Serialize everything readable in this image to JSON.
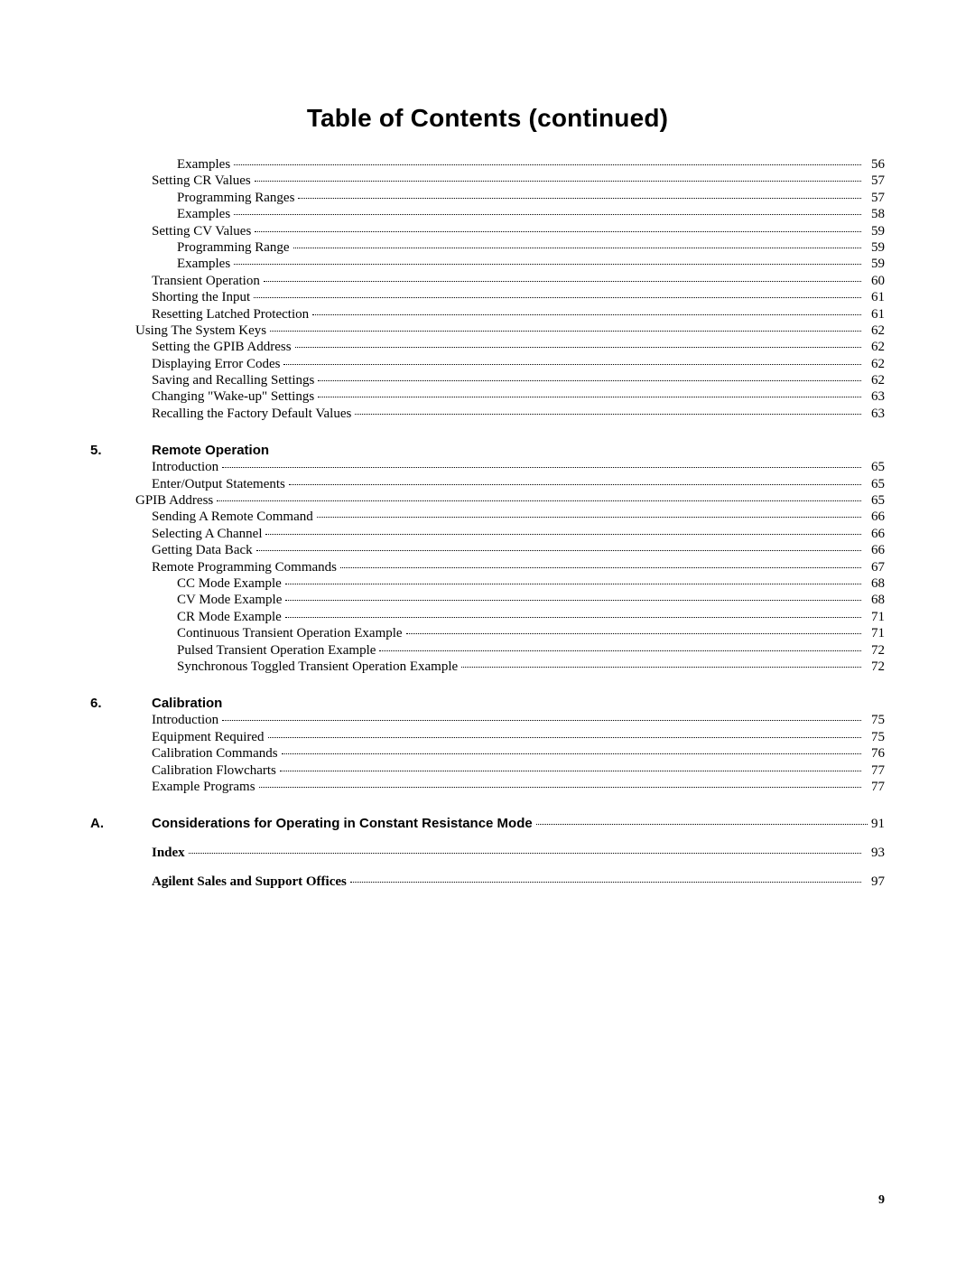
{
  "title": "Table of Contents (continued)",
  "page_number": "9",
  "continued_entries": [
    {
      "label": "Examples",
      "page": "56",
      "indent": 2
    },
    {
      "label": "Setting CR Values",
      "page": "57",
      "indent": 1
    },
    {
      "label": "Programming Ranges",
      "page": "57",
      "indent": 2
    },
    {
      "label": "Examples",
      "page": "58",
      "indent": 2
    },
    {
      "label": "Setting CV Values",
      "page": "59",
      "indent": 1
    },
    {
      "label": "Programming Range",
      "page": "59",
      "indent": 2
    },
    {
      "label": "Examples",
      "page": "59",
      "indent": 2
    },
    {
      "label": "Transient Operation",
      "page": "60",
      "indent": 1
    },
    {
      "label": "Shorting the Input",
      "page": "61",
      "indent": 1
    },
    {
      "label": "Resetting Latched Protection",
      "page": "61",
      "indent": 1
    },
    {
      "label": "Using The System Keys",
      "page": "62",
      "indent": 0
    },
    {
      "label": "Setting the GPIB Address",
      "page": "62",
      "indent": 1
    },
    {
      "label": "Displaying Error Codes",
      "page": "62",
      "indent": 1
    },
    {
      "label": "Saving and Recalling Settings",
      "page": "62",
      "indent": 1
    },
    {
      "label": "Changing \"Wake-up\" Settings",
      "page": "63",
      "indent": 1
    },
    {
      "label": "Recalling the Factory Default Values",
      "page": "63",
      "indent": 1
    }
  ],
  "sections": [
    {
      "number": "5.",
      "title": "Remote Operation",
      "entries": [
        {
          "label": "Introduction",
          "page": "65",
          "indent": 1
        },
        {
          "label": "Enter/Output Statements",
          "page": "65",
          "indent": 1
        },
        {
          "label": "GPIB Address",
          "page": "65",
          "indent": 0
        },
        {
          "label": "Sending A Remote Command",
          "page": "66",
          "indent": 1
        },
        {
          "label": "Selecting A Channel",
          "page": "66",
          "indent": 1
        },
        {
          "label": "Getting Data Back",
          "page": "66",
          "indent": 1
        },
        {
          "label": "Remote Programming Commands",
          "page": "67",
          "indent": 1
        },
        {
          "label": "CC Mode Example",
          "page": "68",
          "indent": 2
        },
        {
          "label": "CV Mode Example",
          "page": "68",
          "indent": 2
        },
        {
          "label": "CR Mode Example",
          "page": "71",
          "indent": 2
        },
        {
          "label": "Continuous Transient Operation Example",
          "page": "71",
          "indent": 2
        },
        {
          "label": "Pulsed Transient Operation Example",
          "page": "72",
          "indent": 2
        },
        {
          "label": "Synchronous Toggled Transient Operation Example",
          "page": "72",
          "indent": 2
        }
      ]
    },
    {
      "number": "6.",
      "title": "Calibration",
      "entries": [
        {
          "label": "Introduction",
          "page": "75",
          "indent": 1
        },
        {
          "label": "Equipment Required",
          "page": "75",
          "indent": 1
        },
        {
          "label": "Calibration Commands",
          "page": "76",
          "indent": 1
        },
        {
          "label": "Calibration Flowcharts",
          "page": "77",
          "indent": 1
        },
        {
          "label": "Example Programs",
          "page": "77",
          "indent": 1
        }
      ]
    }
  ],
  "appendix": {
    "number": "A.",
    "title": "Considerations for Operating in Constant Resistance Mode",
    "page": "91"
  },
  "tail_entries": [
    {
      "label": "Index",
      "page": "93"
    },
    {
      "label": "Agilent Sales and Support Offices",
      "page": "97"
    }
  ]
}
